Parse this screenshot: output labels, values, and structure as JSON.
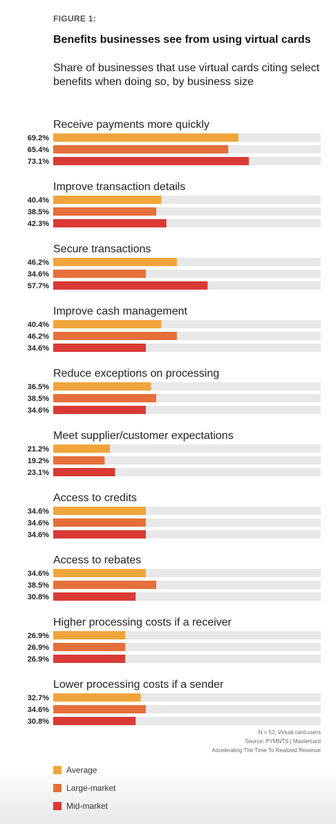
{
  "figure_label": "FIGURE 1:",
  "title": "Benefits businesses see from using virtual cards",
  "subtitle": "Share of businesses that use virtual cards citing select benefits when doing so, by business size",
  "footnote": {
    "line1": "N = 52, Virtual card users",
    "line2": "Source: PYMNTS  |  Mastercard",
    "line3": "Accelerating The Time To Realized Revenue"
  },
  "colors": {
    "Average": "#F0A53C",
    "Large-market": "#E5703A",
    "Mid-market": "#D93A35",
    "track": "#E8E8E8"
  },
  "legend": [
    {
      "label": "Average",
      "color": "#F0A53C"
    },
    {
      "label": "Large-market",
      "color": "#E5703A"
    },
    {
      "label": "Mid-market",
      "color": "#D93A35"
    }
  ],
  "chart_data": {
    "type": "bar",
    "orientation": "horizontal",
    "xlim": [
      0,
      100
    ],
    "unit": "%",
    "grid": false,
    "legend_position": "bottom-left",
    "categories": [
      "Receive payments more quickly",
      "Improve transaction details",
      "Secure transactions",
      "Improve cash management",
      "Reduce exceptions on processing",
      "Meet supplier/customer expectations",
      "Access to credits",
      "Access to rebates",
      "Higher processing costs if a receiver",
      "Lower processing costs if a sender"
    ],
    "series": [
      {
        "name": "Average",
        "values": [
          69.2,
          40.4,
          46.2,
          40.4,
          36.5,
          21.2,
          34.6,
          34.6,
          26.9,
          32.7
        ]
      },
      {
        "name": "Large-market",
        "values": [
          65.4,
          38.5,
          34.6,
          46.2,
          38.5,
          19.2,
          34.6,
          38.5,
          26.9,
          34.6
        ]
      },
      {
        "name": "Mid-market",
        "values": [
          73.1,
          42.3,
          57.7,
          34.6,
          34.6,
          23.1,
          34.6,
          30.8,
          26.9,
          30.8
        ]
      }
    ]
  }
}
